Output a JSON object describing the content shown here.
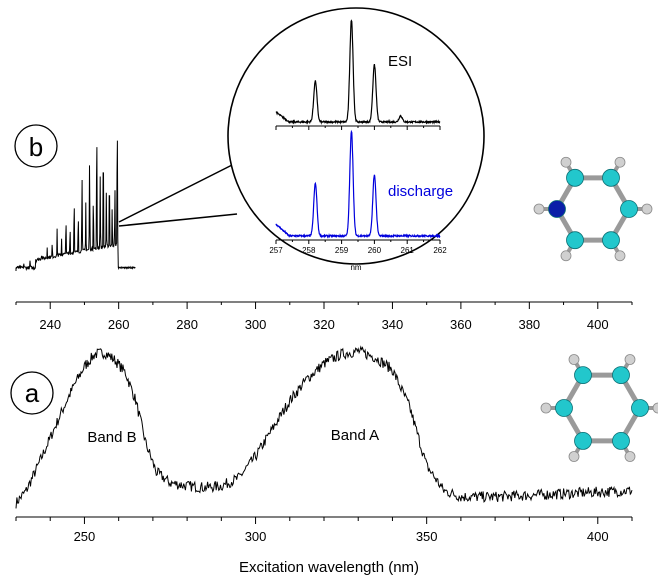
{
  "chart_data": [
    {
      "type": "line",
      "panel_label": "a",
      "xlabel": "Excitation wavelength (nm)",
      "xlim": [
        230,
        410
      ],
      "xticks": [
        250,
        300,
        350,
        400
      ],
      "annotations": [
        "Band B",
        "Band A"
      ],
      "series": [
        {
          "x": [
            230,
            233,
            236,
            240,
            244,
            247,
            250,
            253,
            256,
            259,
            262,
            265,
            268,
            271,
            275,
            280,
            285,
            290,
            295,
            300,
            305,
            310,
            315,
            320,
            325,
            330,
            335,
            340,
            345,
            350,
            355,
            360,
            370,
            380,
            390,
            400,
            410
          ],
          "y": [
            0.0,
            0.08,
            0.22,
            0.42,
            0.62,
            0.76,
            0.88,
            0.96,
            0.97,
            0.92,
            0.84,
            0.66,
            0.38,
            0.2,
            0.13,
            0.11,
            0.1,
            0.11,
            0.16,
            0.3,
            0.48,
            0.66,
            0.8,
            0.9,
            0.96,
            0.98,
            0.94,
            0.86,
            0.62,
            0.24,
            0.08,
            0.04,
            0.04,
            0.05,
            0.06,
            0.07,
            0.08
          ]
        }
      ],
      "line_color": "#000000"
    },
    {
      "type": "line",
      "panel_label": "b",
      "xlim": [
        230,
        410
      ],
      "xticks": [
        240,
        260,
        280,
        300,
        320,
        340,
        360,
        380,
        400
      ],
      "series": [
        {
          "x": [
            230.5,
            232.3,
            234.1,
            235.8,
            237.5,
            239.1,
            240.6,
            242.0,
            243.3,
            244.6,
            245.8,
            247.0,
            248.2,
            249.3,
            250.4,
            251.5,
            252.6,
            253.6,
            254.6,
            255.5,
            256.4,
            257.3,
            258.1,
            258.9,
            259.6
          ],
          "y": [
            0.03,
            0.05,
            0.07,
            0.09,
            0.13,
            0.16,
            0.2,
            0.26,
            0.22,
            0.35,
            0.3,
            0.48,
            0.38,
            0.62,
            0.42,
            0.72,
            0.5,
            0.95,
            0.58,
            0.86,
            0.48,
            0.66,
            0.42,
            0.55,
            1.0
          ]
        }
      ],
      "inset": {
        "xlabel": "nm",
        "xticks": [
          257,
          258,
          259,
          260,
          261,
          262
        ],
        "xlim": [
          257,
          262
        ],
        "series": [
          {
            "name": "ESI",
            "color": "#000000",
            "peaks": [
              {
                "center": 258.2,
                "height": 0.4
              },
              {
                "center": 259.3,
                "height": 1.0
              },
              {
                "center": 260.0,
                "height": 0.56
              },
              {
                "center": 260.8,
                "height": 0.06
              }
            ]
          },
          {
            "name": "discharge",
            "color": "#0000dd",
            "peaks": [
              {
                "center": 258.2,
                "height": 0.5
              },
              {
                "center": 259.3,
                "height": 1.0
              },
              {
                "center": 260.0,
                "height": 0.58
              }
            ]
          }
        ]
      }
    }
  ],
  "colors": {
    "carbon": "#22c7cc",
    "nitrogen": "#0b1fa8",
    "hydrogen": "#d0d0d0",
    "bond": "#9a9a9a"
  }
}
